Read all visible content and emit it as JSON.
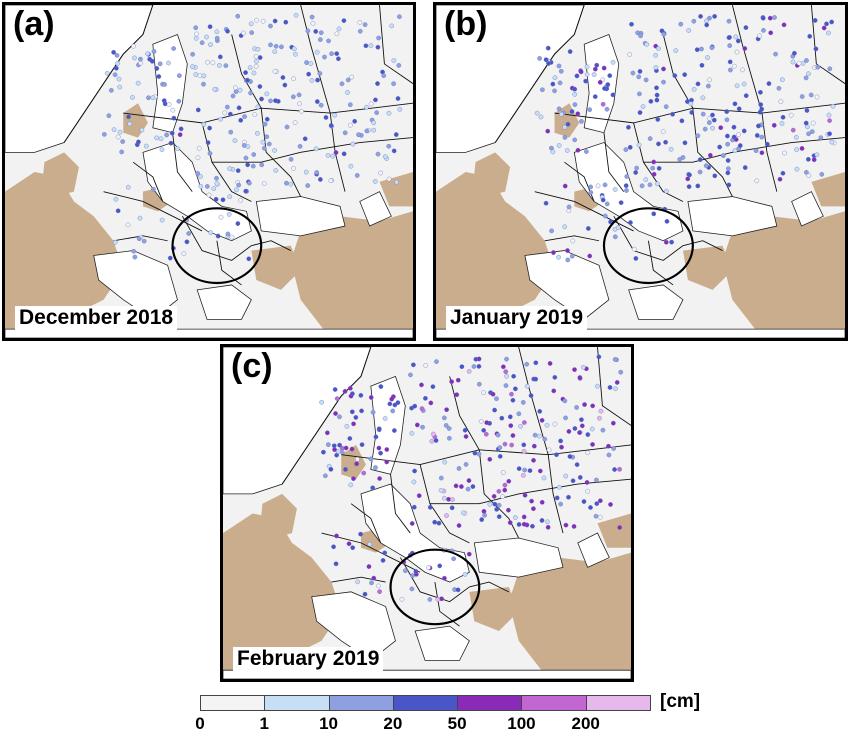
{
  "panels": [
    {
      "id": "a",
      "letter": "(a)",
      "date": "December 2018"
    },
    {
      "id": "b",
      "letter": "(b)",
      "date": "January 2019"
    },
    {
      "id": "c",
      "letter": "(c)",
      "date": "February 2019"
    }
  ],
  "colors": {
    "land": "#f2f2f2",
    "tan": "#c9ad8c",
    "water": "#ffffff",
    "borders": "#111111"
  },
  "legend": {
    "unit": "[cm]",
    "ticks": [
      "0",
      "1",
      "10",
      "20",
      "50",
      "100",
      "200"
    ],
    "bins": [
      {
        "from": "0",
        "to": "1",
        "color": "#f4f4f4"
      },
      {
        "from": "1",
        "to": "10",
        "color": "#c6def6"
      },
      {
        "from": "10",
        "to": "20",
        "color": "#8fa0e0"
      },
      {
        "from": "20",
        "to": "50",
        "color": "#4a55c8"
      },
      {
        "from": "50",
        "to": "100",
        "color": "#8a2ab8"
      },
      {
        "from": "100",
        "to": "200",
        "color": "#c266d2"
      },
      {
        "from": "200",
        "to": "",
        "color": "#e7b8ec"
      }
    ]
  }
}
